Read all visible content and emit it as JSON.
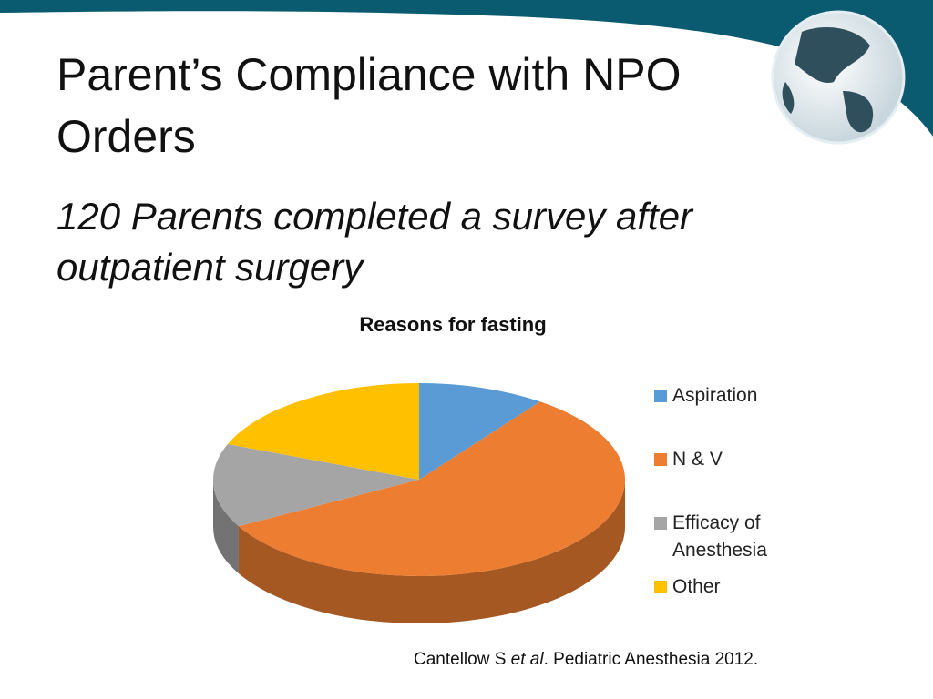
{
  "slide": {
    "title": "Parent’s Compliance with NPO Orders",
    "subtitle": "120 Parents completed a survey after outpatient surgery",
    "citation": [
      "Cantellow S ",
      "et al",
      ". Pediatric Anesthesia 2012."
    ]
  },
  "chart_data": {
    "type": "pie3d",
    "title": "Reasons for fasting",
    "categories": [
      "Aspiration",
      "N & V",
      "Efficacy of Anesthesia",
      "Other"
    ],
    "values": [
      10,
      57,
      14,
      19
    ],
    "colors": [
      "#5b9bd5",
      "#ed7d31",
      "#a5a5a5",
      "#ffc000"
    ],
    "legend": "right"
  }
}
